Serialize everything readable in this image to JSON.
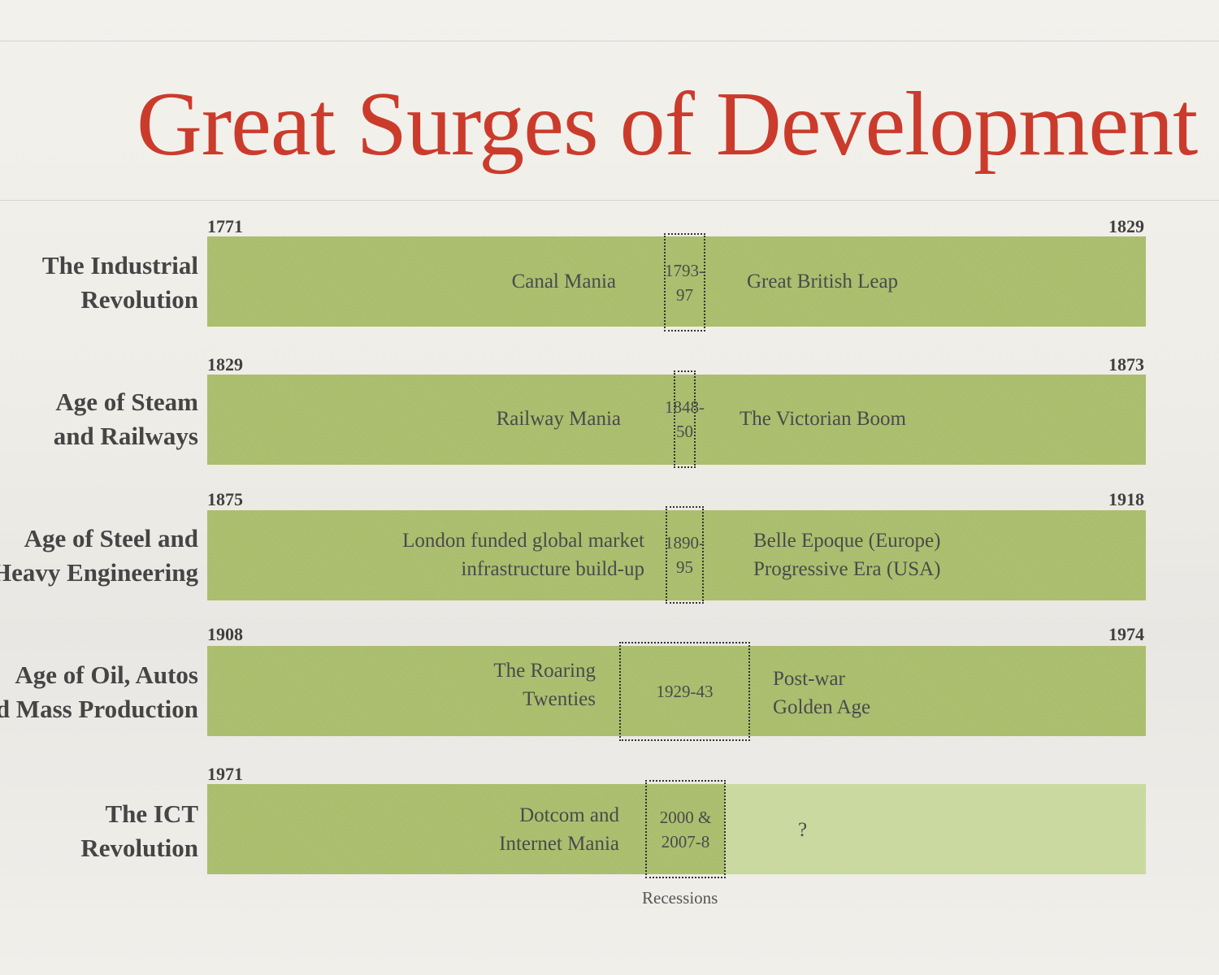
{
  "title": "Great Surges of Development",
  "surges": [
    {
      "label": [
        "The Industrial",
        "Revolution"
      ],
      "start_year": "1771",
      "end_year": "1829",
      "before": [
        "Canal Mania"
      ],
      "recession": [
        "1793-",
        "97"
      ],
      "after": [
        "Great British Leap"
      ]
    },
    {
      "label": [
        "Age of Steam",
        "and Railways"
      ],
      "start_year": "1829",
      "end_year": "1873",
      "before": [
        "Railway Mania"
      ],
      "recession": [
        "1848-",
        "50"
      ],
      "after": [
        "The Victorian Boom"
      ]
    },
    {
      "label": [
        "Age of Steel and",
        "Heavy Engineering"
      ],
      "start_year": "1875",
      "end_year": "1918",
      "before": [
        "London funded global market",
        "infrastructure build-up"
      ],
      "recession": [
        "1890-",
        "95"
      ],
      "after": [
        "Belle Epoque (Europe)",
        "Progressive Era (USA)"
      ]
    },
    {
      "label": [
        "Age of Oil, Autos",
        "and Mass Production"
      ],
      "start_year": "1908",
      "end_year": "1974",
      "before": [
        "The Roaring",
        "Twenties"
      ],
      "recession": [
        "1929-43"
      ],
      "after": [
        "Post-war",
        "Golden Age"
      ]
    },
    {
      "label": [
        "The ICT",
        "Revolution"
      ],
      "start_year": "1971",
      "end_year": "",
      "before": [
        "Dotcom and",
        "Internet Mania"
      ],
      "recession": [
        "2000 &",
        "2007-8"
      ],
      "after": [
        "?"
      ]
    }
  ],
  "legend": "Recessions",
  "colors": {
    "title": "#cb3b2c",
    "bar": "#a9bd6c",
    "bar_future": "#cad9a0"
  }
}
